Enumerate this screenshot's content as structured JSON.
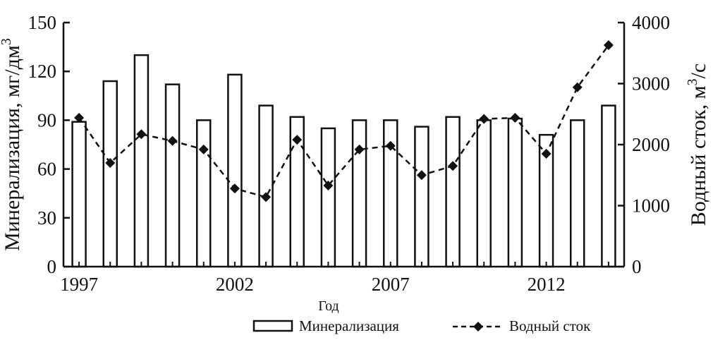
{
  "chart_data": {
    "type": "bar+line",
    "title": "",
    "x": [
      1997,
      1998,
      1999,
      2000,
      2001,
      2002,
      2003,
      2004,
      2005,
      2006,
      2007,
      2008,
      2009,
      2010,
      2011,
      2012,
      2013,
      2014
    ],
    "xticks": [
      "1997",
      "2002",
      "2007",
      "2012"
    ],
    "xlabel": "Год",
    "ylabel_left": {
      "main": "Минерализация, мг/дм",
      "sup": "3"
    },
    "ylabel_right": {
      "main": "Водный сток, м",
      "sup": "3",
      "tail": "/с"
    },
    "ylim_left": [
      0,
      150
    ],
    "yticks_left": [
      "0",
      "30",
      "60",
      "90",
      "120",
      "150"
    ],
    "ylim_right": [
      0,
      4000
    ],
    "yticks_right": [
      "0",
      "1000",
      "2000",
      "3000",
      "4000"
    ],
    "series": [
      {
        "name": "Минерализация",
        "type": "bar",
        "axis": "left",
        "values": [
          89,
          114,
          130,
          112,
          90,
          118,
          99,
          92,
          85,
          90,
          90,
          86,
          92,
          90,
          91,
          81,
          90,
          99
        ]
      },
      {
        "name": "Водный сток",
        "type": "line",
        "axis": "right",
        "style": "dashed",
        "marker": "diamond",
        "values": [
          2440,
          1700,
          2170,
          2060,
          1920,
          1280,
          1140,
          2080,
          1330,
          1920,
          1980,
          1500,
          1650,
          2420,
          2440,
          1850,
          2940,
          3630
        ]
      }
    ],
    "grid": false,
    "legend_position": "bottom-right",
    "colors": {
      "bar_fill": "#ffffff",
      "bar_stroke": "#111111",
      "line": "#111111"
    }
  }
}
